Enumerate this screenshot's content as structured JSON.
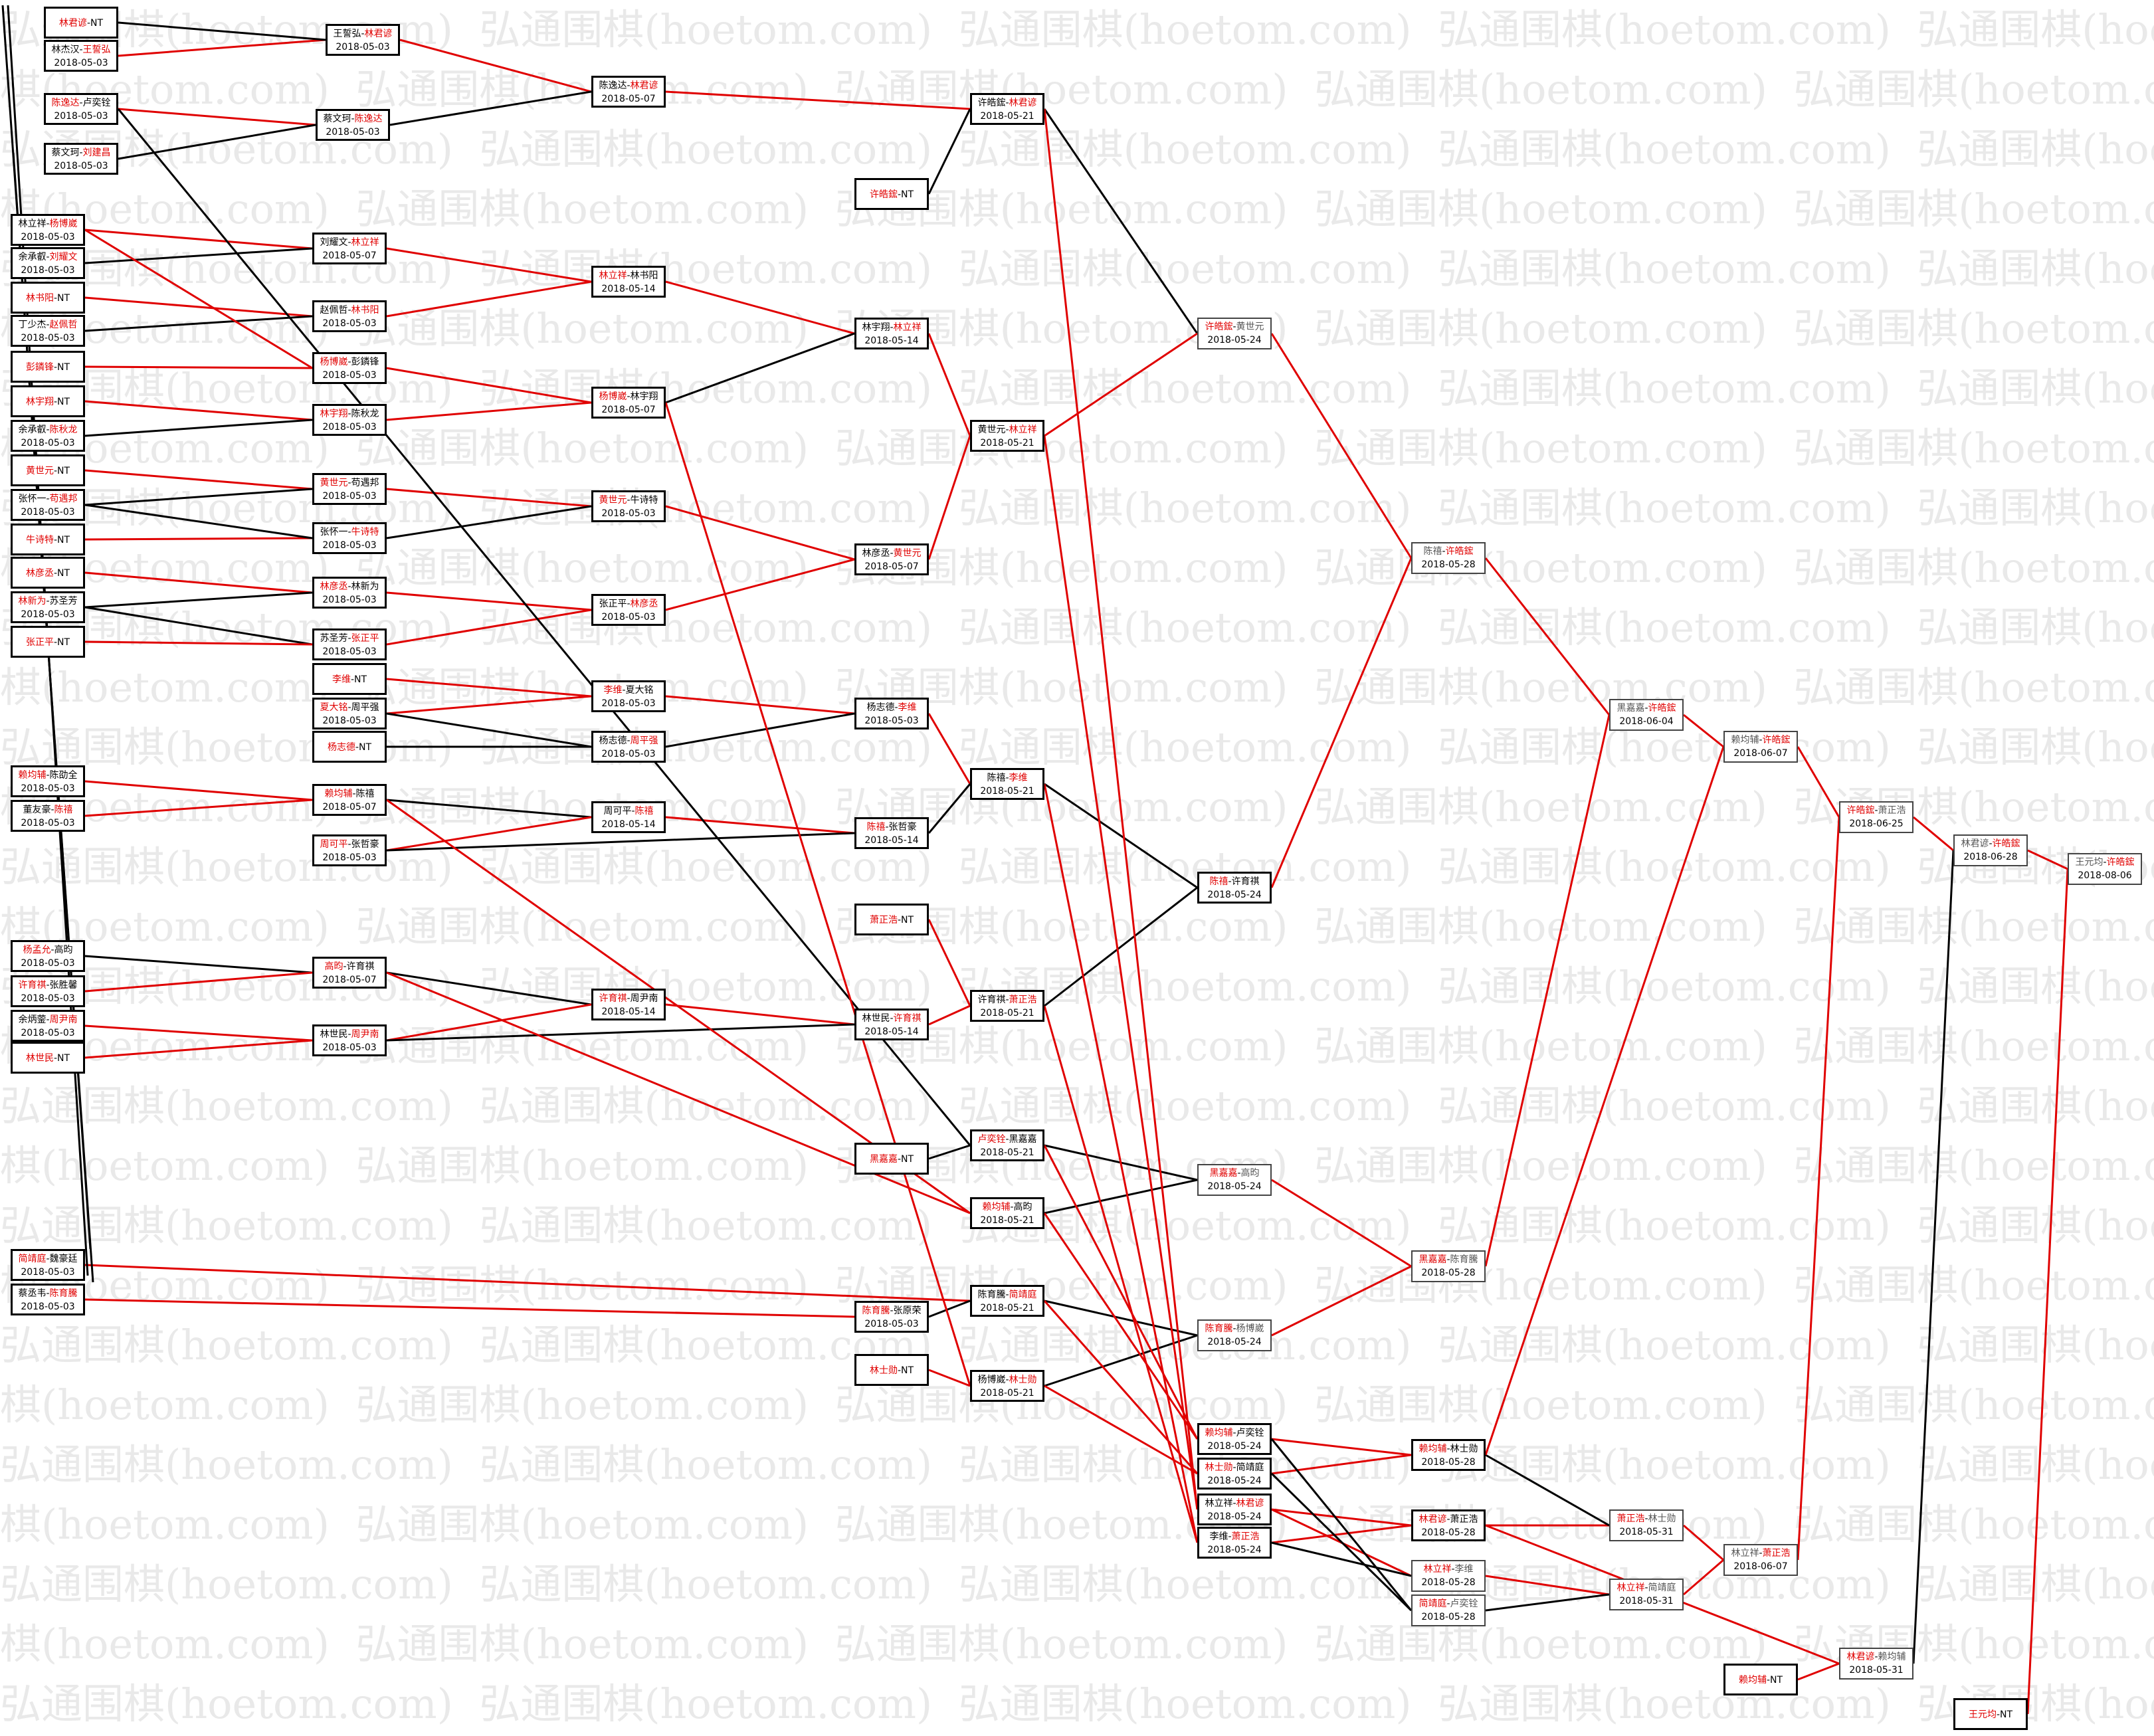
{
  "watermark": "弘通围棋(hoetom.com)",
  "colors": {
    "win": "#e00000",
    "loss": "#000000"
  },
  "nodes": [
    {
      "id": "a1",
      "a": "林君谚",
      "b": "NT",
      "w": "a",
      "date": ""
    },
    {
      "id": "a2",
      "a": "林杰汉",
      "b": "王誓弘",
      "w": "b",
      "date": "2018-05-03"
    },
    {
      "id": "a3",
      "a": "陈逸达",
      "b": "卢奕铨",
      "w": "a",
      "date": "2018-05-03"
    },
    {
      "id": "a4",
      "a": "蔡文珂",
      "b": "刘建昌",
      "w": "b",
      "date": "2018-05-03"
    },
    {
      "id": "a5",
      "a": "林立祥",
      "b": "杨博崴",
      "w": "b",
      "date": "2018-05-03"
    },
    {
      "id": "a6",
      "a": "余承叡",
      "b": "刘耀文",
      "w": "b",
      "date": "2018-05-03"
    },
    {
      "id": "a7",
      "a": "林书阳",
      "b": "NT",
      "w": "a",
      "date": ""
    },
    {
      "id": "a8",
      "a": "丁少杰",
      "b": "赵佩哲",
      "w": "b",
      "date": "2018-05-03"
    },
    {
      "id": "a9",
      "a": "彭鏻锋",
      "b": "NT",
      "w": "a",
      "date": ""
    },
    {
      "id": "a10",
      "a": "林宇翔",
      "b": "NT",
      "w": "a",
      "date": ""
    },
    {
      "id": "a11",
      "a": "余承叡",
      "b": "陈秋龙",
      "w": "b",
      "date": "2018-05-03"
    },
    {
      "id": "a12",
      "a": "黄世元",
      "b": "NT",
      "w": "a",
      "date": ""
    },
    {
      "id": "a13",
      "a": "张怀一",
      "b": "苟遇邦",
      "w": "b",
      "date": "2018-05-03"
    },
    {
      "id": "a14",
      "a": "牛诗特",
      "b": "NT",
      "w": "a",
      "date": ""
    },
    {
      "id": "a15",
      "a": "林彦丞",
      "b": "NT",
      "w": "a",
      "date": ""
    },
    {
      "id": "a16",
      "a": "林新为",
      "b": "苏圣芳",
      "w": "a",
      "date": "2018-05-03"
    },
    {
      "id": "a17",
      "a": "张正平",
      "b": "NT",
      "w": "a",
      "date": ""
    },
    {
      "id": "a18",
      "a": "赖均辅",
      "b": "陈劭全",
      "w": "a",
      "date": "2018-05-03"
    },
    {
      "id": "a19",
      "a": "董友豪",
      "b": "陈禧",
      "w": "b",
      "date": "2018-05-03"
    },
    {
      "id": "a20",
      "a": "杨孟允",
      "b": "高昀",
      "w": "a",
      "date": "2018-05-03"
    },
    {
      "id": "a21",
      "a": "许育祺",
      "b": "张胜馨",
      "w": "a",
      "date": "2018-05-03"
    },
    {
      "id": "a22",
      "a": "余炳蓥",
      "b": "周尹南",
      "w": "b",
      "date": "2018-05-03"
    },
    {
      "id": "a23",
      "a": "林世民",
      "b": "NT",
      "w": "a",
      "date": ""
    },
    {
      "id": "a24",
      "a": "简靖庭",
      "b": "魏豪廷",
      "w": "a",
      "date": "2018-05-03"
    },
    {
      "id": "a25",
      "a": "蔡丞韦",
      "b": "陈育騰",
      "w": "b",
      "date": "2018-05-03"
    },
    {
      "id": "b1",
      "a": "王誓弘",
      "b": "林君谚",
      "w": "b",
      "date": "2018-05-03"
    },
    {
      "id": "b2",
      "a": "蔡文珂",
      "b": "陈逸达",
      "w": "b",
      "date": "2018-05-03"
    },
    {
      "id": "b3",
      "a": "刘耀文",
      "b": "林立祥",
      "w": "b",
      "date": "2018-05-07"
    },
    {
      "id": "b4",
      "a": "赵佩哲",
      "b": "林书阳",
      "w": "b",
      "date": "2018-05-03"
    },
    {
      "id": "b5",
      "a": "杨博崴",
      "b": "彭鏻锋",
      "w": "a",
      "date": "2018-05-03"
    },
    {
      "id": "b6",
      "a": "林宇翔",
      "b": "陈秋龙",
      "w": "a",
      "date": "2018-05-03"
    },
    {
      "id": "b7",
      "a": "黄世元",
      "b": "苟遇邦",
      "w": "a",
      "date": "2018-05-03"
    },
    {
      "id": "b8",
      "a": "张怀一",
      "b": "牛诗特",
      "w": "b",
      "date": "2018-05-03"
    },
    {
      "id": "b9",
      "a": "林彦丞",
      "b": "林新为",
      "w": "a",
      "date": "2018-05-03"
    },
    {
      "id": "b10",
      "a": "苏圣芳",
      "b": "张正平",
      "w": "b",
      "date": "2018-05-03"
    },
    {
      "id": "b11",
      "a": "李维",
      "b": "NT",
      "w": "a",
      "date": ""
    },
    {
      "id": "b12",
      "a": "夏大铭",
      "b": "周平强",
      "w": "a",
      "date": "2018-05-03"
    },
    {
      "id": "b13",
      "a": "杨志德",
      "b": "NT",
      "w": "a",
      "date": ""
    },
    {
      "id": "b14",
      "a": "赖均辅",
      "b": "陈禧",
      "w": "a",
      "date": "2018-05-07"
    },
    {
      "id": "b15",
      "a": "周可平",
      "b": "张哲豪",
      "w": "a",
      "date": "2018-05-03"
    },
    {
      "id": "b16",
      "a": "高昀",
      "b": "许育祺",
      "w": "a",
      "date": "2018-05-07"
    },
    {
      "id": "b17",
      "a": "林世民",
      "b": "周尹南",
      "w": "b",
      "date": "2018-05-03"
    },
    {
      "id": "c1",
      "a": "陈逸达",
      "b": "林君谚",
      "w": "b",
      "date": "2018-05-07"
    },
    {
      "id": "c2",
      "a": "林立祥",
      "b": "林书阳",
      "w": "a",
      "date": "2018-05-14"
    },
    {
      "id": "c3",
      "a": "杨博崴",
      "b": "林宇翔",
      "w": "a",
      "date": "2018-05-07"
    },
    {
      "id": "c4",
      "a": "黄世元",
      "b": "牛诗特",
      "w": "a",
      "date": "2018-05-03"
    },
    {
      "id": "c5",
      "a": "张正平",
      "b": "林彦丞",
      "w": "b",
      "date": "2018-05-03"
    },
    {
      "id": "c6",
      "a": "李维",
      "b": "夏大铭",
      "w": "a",
      "date": "2018-05-03"
    },
    {
      "id": "c7",
      "a": "杨志德",
      "b": "周平强",
      "w": "b",
      "date": "2018-05-03"
    },
    {
      "id": "c8",
      "a": "周可平",
      "b": "陈禧",
      "w": "b",
      "date": "2018-05-14"
    },
    {
      "id": "c9",
      "a": "许育祺",
      "b": "周尹南",
      "w": "a",
      "date": "2018-05-14"
    },
    {
      "id": "d1",
      "a": "许皓鋐",
      "b": "NT",
      "w": "a",
      "date": ""
    },
    {
      "id": "d2",
      "a": "林宇翔",
      "b": "林立祥",
      "w": "b",
      "date": "2018-05-14"
    },
    {
      "id": "d3",
      "a": "林彦丞",
      "b": "黄世元",
      "w": "b",
      "date": "2018-05-07"
    },
    {
      "id": "d4",
      "a": "杨志德",
      "b": "李维",
      "w": "b",
      "date": "2018-05-03"
    },
    {
      "id": "d5",
      "a": "陈禧",
      "b": "张哲豪",
      "w": "a",
      "date": "2018-05-14"
    },
    {
      "id": "d6",
      "a": "萧正浩",
      "b": "NT",
      "w": "a",
      "date": ""
    },
    {
      "id": "d7",
      "a": "林世民",
      "b": "许育祺",
      "w": "b",
      "date": "2018-05-14"
    },
    {
      "id": "d8",
      "a": "黑嘉嘉",
      "b": "NT",
      "w": "a",
      "date": ""
    },
    {
      "id": "d9",
      "a": "陈育騰",
      "b": "张原荣",
      "w": "a",
      "date": "2018-05-03"
    },
    {
      "id": "d10",
      "a": "林士勋",
      "b": "NT",
      "w": "a",
      "date": ""
    },
    {
      "id": "e1",
      "a": "许皓鋐",
      "b": "林君谚",
      "w": "b",
      "date": "2018-05-21"
    },
    {
      "id": "e2",
      "a": "黄世元",
      "b": "林立祥",
      "w": "b",
      "date": "2018-05-21"
    },
    {
      "id": "e3",
      "a": "陈禧",
      "b": "李维",
      "w": "b",
      "date": "2018-05-21"
    },
    {
      "id": "e4",
      "a": "许育祺",
      "b": "萧正浩",
      "w": "b",
      "date": "2018-05-21"
    },
    {
      "id": "e5",
      "a": "卢奕铨",
      "b": "黑嘉嘉",
      "w": "a",
      "date": "2018-05-21"
    },
    {
      "id": "e6",
      "a": "赖均辅",
      "b": "高昀",
      "w": "a",
      "date": "2018-05-21"
    },
    {
      "id": "e7",
      "a": "陈育騰",
      "b": "简靖庭",
      "w": "b",
      "date": "2018-05-21"
    },
    {
      "id": "e8",
      "a": "杨博崴",
      "b": "林士勋",
      "w": "b",
      "date": "2018-05-21"
    },
    {
      "id": "f1",
      "a": "许皓鋐",
      "b": "黄世元",
      "w": "a",
      "date": "2018-05-24"
    },
    {
      "id": "f2",
      "a": "陈禧",
      "b": "许育祺",
      "w": "a",
      "date": "2018-05-24"
    },
    {
      "id": "f3",
      "a": "黑嘉嘉",
      "b": "高昀",
      "w": "a",
      "date": "2018-05-24"
    },
    {
      "id": "f4",
      "a": "陈育騰",
      "b": "杨博崴",
      "w": "a",
      "date": "2018-05-24"
    },
    {
      "id": "f5",
      "a": "赖均辅",
      "b": "卢奕铨",
      "w": "a",
      "date": "2018-05-24"
    },
    {
      "id": "f6",
      "a": "林士勋",
      "b": "简靖庭",
      "w": "a",
      "date": "2018-05-24"
    },
    {
      "id": "f7",
      "a": "林立祥",
      "b": "林君谚",
      "w": "b",
      "date": "2018-05-24"
    },
    {
      "id": "f8",
      "a": "李维",
      "b": "萧正浩",
      "w": "b",
      "date": "2018-05-24"
    },
    {
      "id": "g1",
      "a": "陈禧",
      "b": "许皓鋐",
      "w": "b",
      "date": "2018-05-28"
    },
    {
      "id": "g2",
      "a": "黑嘉嘉",
      "b": "陈育騰",
      "w": "a",
      "date": "2018-05-28"
    },
    {
      "id": "g3",
      "a": "赖均辅",
      "b": "林士勋",
      "w": "a",
      "date": "2018-05-28"
    },
    {
      "id": "g4",
      "a": "林君谚",
      "b": "萧正浩",
      "w": "a",
      "date": "2018-05-28"
    },
    {
      "id": "g5",
      "a": "林立祥",
      "b": "李维",
      "w": "a",
      "date": "2018-05-28"
    },
    {
      "id": "g6",
      "a": "简靖庭",
      "b": "卢奕铨",
      "w": "a",
      "date": "2018-05-28"
    },
    {
      "id": "h1",
      "a": "黑嘉嘉",
      "b": "许皓鋐",
      "w": "b",
      "date": "2018-06-04"
    },
    {
      "id": "h2",
      "a": "萧正浩",
      "b": "林士勋",
      "w": "a",
      "date": "2018-05-31"
    },
    {
      "id": "h3",
      "a": "林立祥",
      "b": "简靖庭",
      "w": "a",
      "date": "2018-05-31"
    },
    {
      "id": "i1",
      "a": "赖均辅",
      "b": "许皓鋐",
      "w": "b",
      "date": "2018-06-07"
    },
    {
      "id": "i2",
      "a": "林立祥",
      "b": "萧正浩",
      "w": "b",
      "date": "2018-06-07"
    },
    {
      "id": "i3",
      "a": "赖均辅",
      "b": "NT",
      "w": "a",
      "date": ""
    },
    {
      "id": "i4",
      "a": "林君谚",
      "b": "赖均辅",
      "w": "a",
      "date": "2018-05-31"
    },
    {
      "id": "j1",
      "a": "许皓鋐",
      "b": "萧正浩",
      "w": "a",
      "date": "2018-06-25"
    },
    {
      "id": "k1",
      "a": "林君谚",
      "b": "许皓鋐",
      "w": "b",
      "date": "2018-06-28"
    },
    {
      "id": "k2",
      "a": "王元均",
      "b": "NT",
      "w": "a",
      "date": ""
    },
    {
      "id": "m1",
      "a": "王元均",
      "b": "许皓鋐",
      "w": "b",
      "date": "2018-08-06"
    }
  ]
}
